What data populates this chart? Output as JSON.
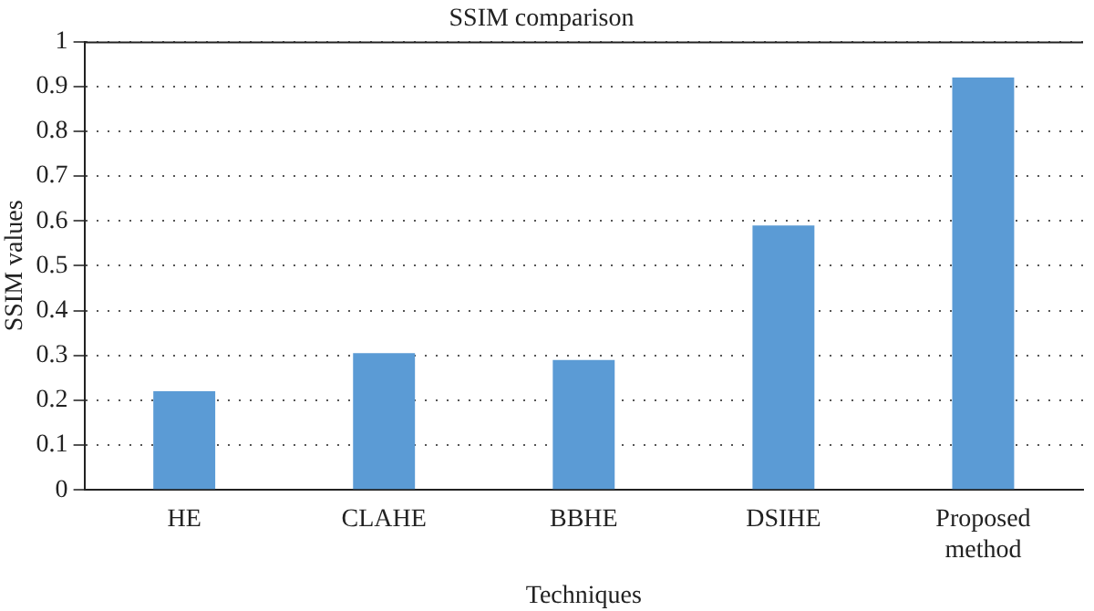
{
  "chart_data": {
    "type": "bar",
    "title": "SSIM comparison",
    "xlabel": "Techniques",
    "ylabel": "SSIM values",
    "categories": [
      "HE",
      "CLAHE",
      "BBHE",
      "DSIHE",
      "Proposed method"
    ],
    "values": [
      0.22,
      0.305,
      0.29,
      0.59,
      0.92
    ],
    "color": "#5b9bd5",
    "ylim": [
      0,
      1
    ],
    "yticks": [
      0,
      0.1,
      0.2,
      0.3,
      0.4,
      0.5,
      0.6,
      0.7,
      0.8,
      0.9,
      1
    ],
    "grid": "y"
  }
}
